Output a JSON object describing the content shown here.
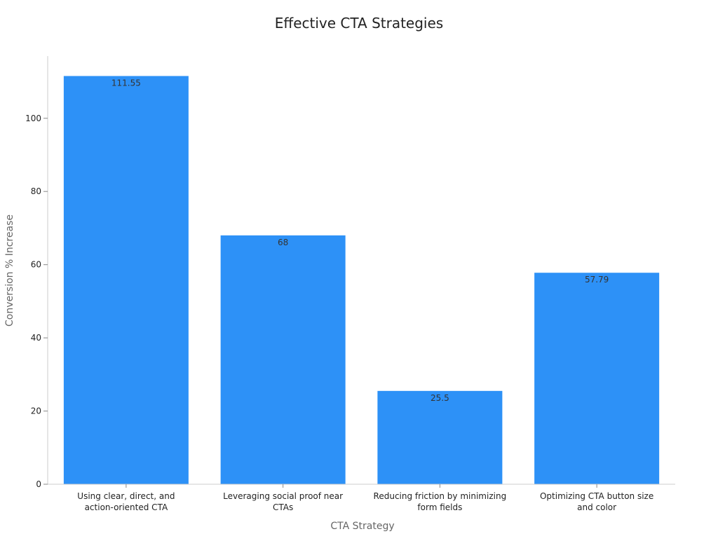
{
  "chart_data": {
    "type": "bar",
    "title": "Effective CTA Strategies",
    "xlabel": "CTA Strategy",
    "ylabel": "Conversion % Increase",
    "categories": [
      "Using clear, direct, and action-oriented CTA",
      "Leveraging social proof near CTAs",
      "Reducing friction by minimizing form fields",
      "Optimizing CTA button size and color"
    ],
    "category_lines": [
      [
        "Using clear, direct, and",
        "action-oriented CTA"
      ],
      [
        "Leveraging social proof near",
        "CTAs"
      ],
      [
        "Reducing friction by minimizing",
        "form fields"
      ],
      [
        "Optimizing CTA button size",
        "and color"
      ]
    ],
    "values": [
      111.55,
      68,
      25.5,
      57.79
    ],
    "data_labels": [
      "111.55",
      "68",
      "25.5",
      "57.79"
    ],
    "yticks": [
      0,
      20,
      40,
      60,
      80,
      100
    ],
    "ylim": [
      0,
      117
    ],
    "grid": false,
    "legend": "none",
    "colors": {
      "bar": "#2d91f7",
      "text": "#222222",
      "axis_label": "#666666",
      "axis": "#cccccc"
    }
  }
}
